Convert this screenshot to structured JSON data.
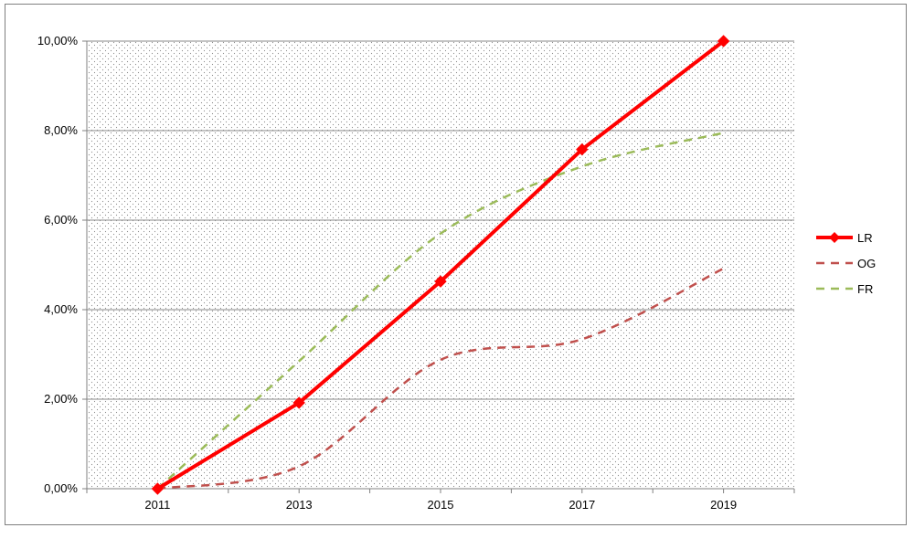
{
  "chart_data": {
    "type": "line",
    "title": "",
    "xlabel": "",
    "ylabel": "",
    "x": [
      "2011",
      "2013",
      "2015",
      "2017",
      "2019"
    ],
    "ylim": [
      0,
      10
    ],
    "yticks": [
      "0,00%",
      "2,00%",
      "4,00%",
      "6,00%",
      "8,00%",
      "10,00%"
    ],
    "ytick_values": [
      0,
      2,
      4,
      6,
      8,
      10
    ],
    "grid": true,
    "legend": "right",
    "background": "dotted",
    "series": [
      {
        "name": "LR",
        "color": "#ff0000",
        "style": "solid",
        "marker": "diamond",
        "values": [
          0.0,
          1.92,
          4.63,
          7.58,
          10.0
        ]
      },
      {
        "name": "OG",
        "color": "#c0504d",
        "style": "dashed",
        "marker": "none",
        "values": [
          0.0,
          0.5,
          2.88,
          3.34,
          4.92
        ]
      },
      {
        "name": "FR",
        "color": "#9bbb59",
        "style": "dashed",
        "marker": "none",
        "values": [
          0.0,
          2.85,
          5.7,
          7.2,
          7.95
        ]
      }
    ]
  }
}
